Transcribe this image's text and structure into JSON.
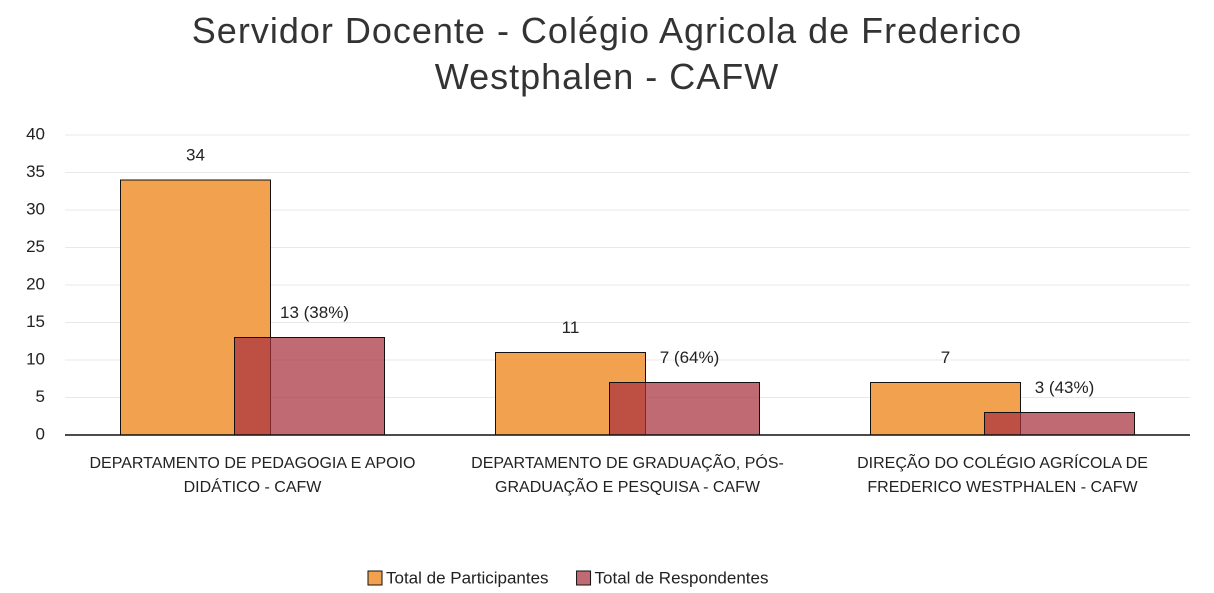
{
  "chart_data": {
    "type": "bar",
    "title": "Servidor Docente - Colégio Agricola de Frederico Westphalen - CAFW",
    "categories": [
      "DEPARTAMENTO DE PEDAGOGIA E APOIO DIDÁTICO - CAFW",
      "DEPARTAMENTO DE GRADUAÇÃO, PÓS-GRADUAÇÃO E PESQUISA - CAFW",
      "DIREÇÃO DO COLÉGIO AGRÍCOLA DE FREDERICO WESTPHALEN - CAFW"
    ],
    "series": [
      {
        "name": "Total de Participantes",
        "color": "#f2a24e",
        "values": [
          34,
          11,
          7
        ]
      },
      {
        "name": "Total de Respondentes",
        "color": "#a8303f",
        "values": [
          13,
          7,
          3
        ],
        "value_labels": [
          "13 (38%)",
          "7 (64%)",
          "3 (43%)"
        ]
      }
    ],
    "ylim": [
      0,
      40
    ],
    "yticks": [
      0,
      5,
      10,
      15,
      20,
      25,
      30,
      35,
      40
    ],
    "grid": true,
    "legend": "bottom"
  }
}
